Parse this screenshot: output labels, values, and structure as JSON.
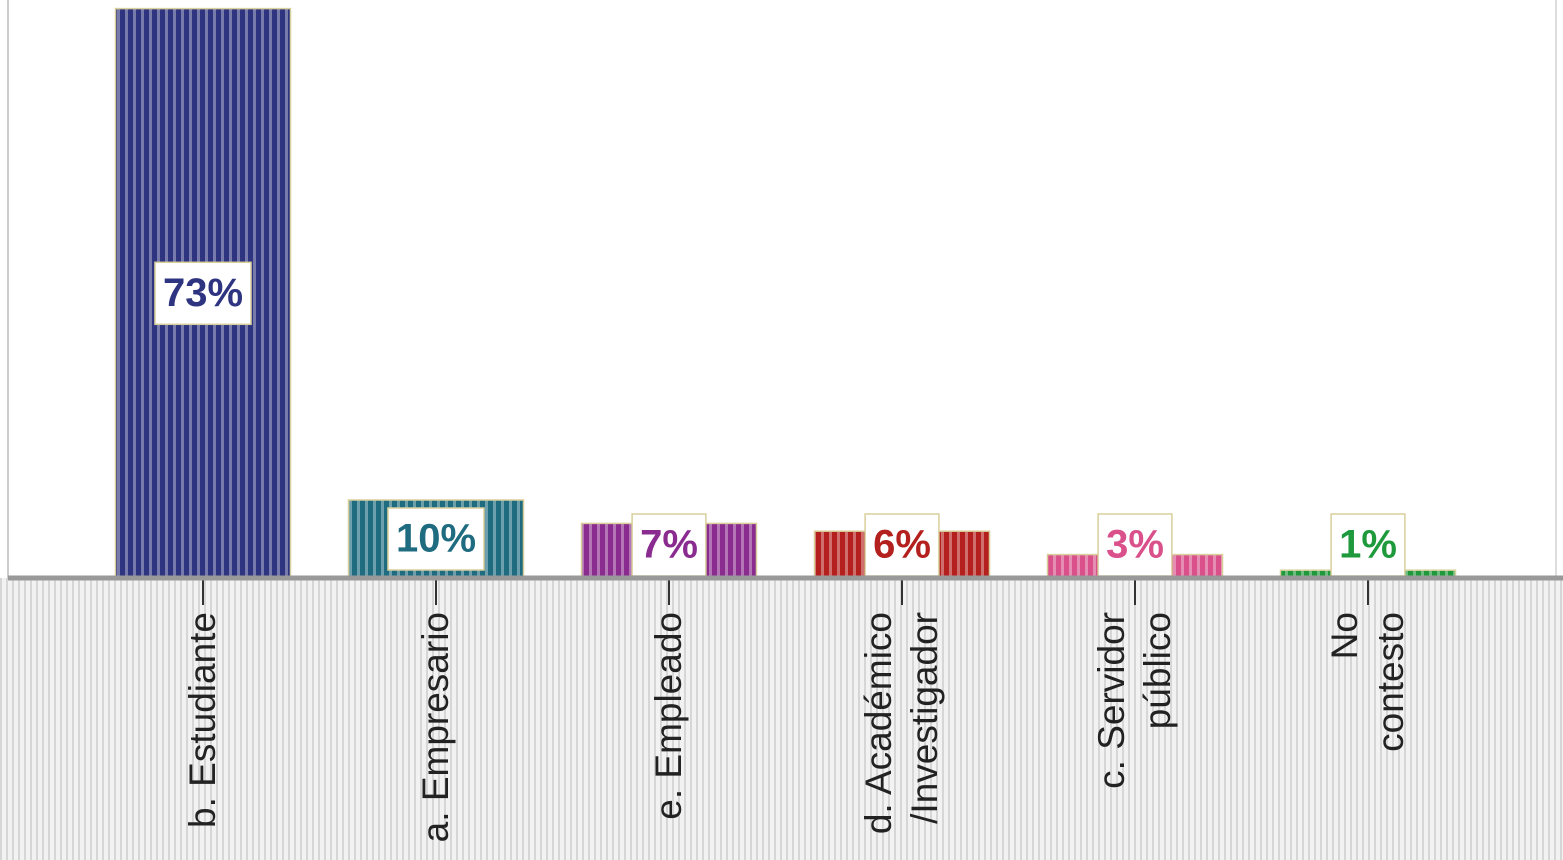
{
  "chart_data": {
    "type": "bar",
    "categories": [
      "b. Estudiante",
      "a. Empresario",
      "e. Empleado",
      "d. Académico\n/Investigador",
      "c. Servidor\npúblico",
      "No\ncontesto"
    ],
    "values": [
      73,
      10,
      7,
      6,
      3,
      1
    ],
    "value_labels": [
      "73%",
      "10%",
      "7%",
      "6%",
      "3%",
      "1%"
    ],
    "colors": [
      "#2e3480",
      "#1f6b80",
      "#8a2b8f",
      "#b3201e",
      "#d9508a",
      "#1e9a3c"
    ],
    "ylim": [
      0,
      75
    ]
  }
}
